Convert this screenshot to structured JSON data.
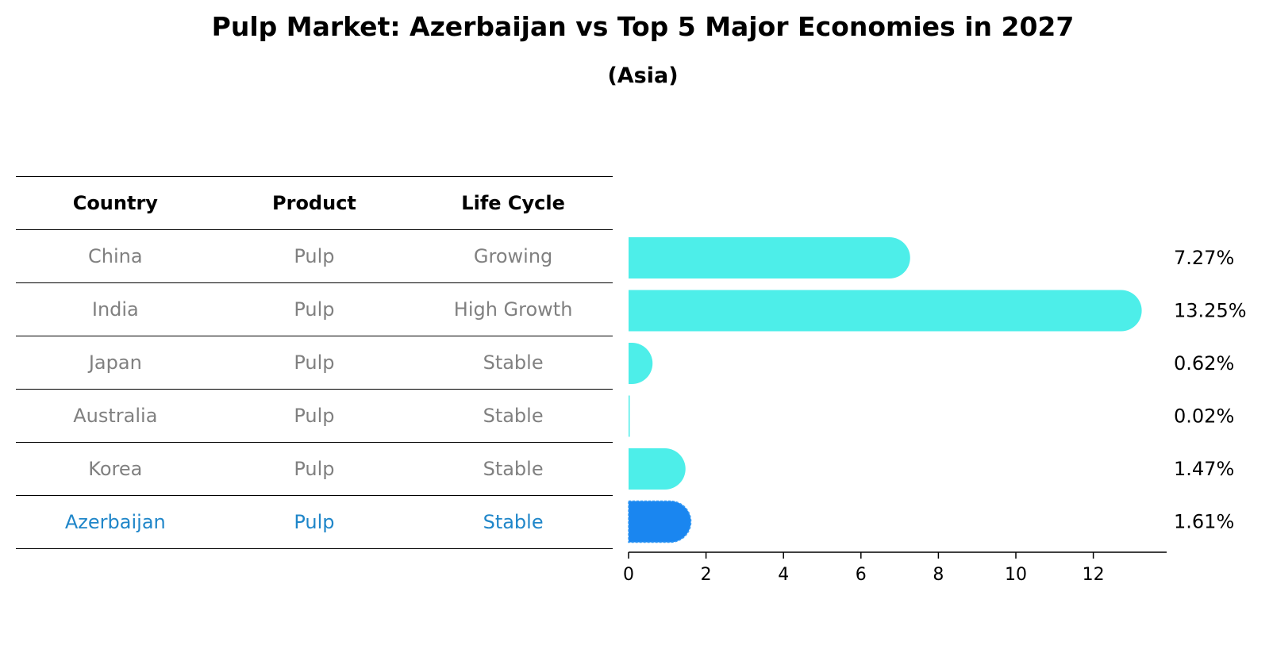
{
  "title": "Pulp Market: Azerbaijan vs Top 5 Major Economies in 2027",
  "subtitle": "(Asia)",
  "table": {
    "headers": [
      "Country",
      "Product",
      "Life Cycle"
    ],
    "rows": [
      [
        "China",
        "Pulp",
        "Growing"
      ],
      [
        "India",
        "Pulp",
        "High Growth"
      ],
      [
        "Japan",
        "Pulp",
        "Stable"
      ],
      [
        "Australia",
        "Pulp",
        "Stable"
      ],
      [
        "Korea",
        "Pulp",
        "Stable"
      ],
      [
        "Azerbaijan",
        "Pulp",
        "Stable"
      ]
    ]
  },
  "chart_data": {
    "type": "bar",
    "orientation": "horizontal",
    "categories": [
      "China",
      "India",
      "Japan",
      "Australia",
      "Korea",
      "Azerbaijan"
    ],
    "values": [
      7.27,
      13.25,
      0.62,
      0.02,
      1.47,
      1.61
    ],
    "value_labels": [
      "7.27%",
      "13.25%",
      "0.62%",
      "0.02%",
      "1.47%",
      "1.61%"
    ],
    "xlim": [
      0,
      13.9
    ],
    "xticks": [
      0,
      2,
      4,
      6,
      8,
      10,
      12
    ],
    "highlight_index": 5,
    "colors": {
      "default": "#4deee9",
      "highlight": "#1a86f0",
      "table_highlight_text": "#1f86c9",
      "table_text": "#808080"
    }
  }
}
